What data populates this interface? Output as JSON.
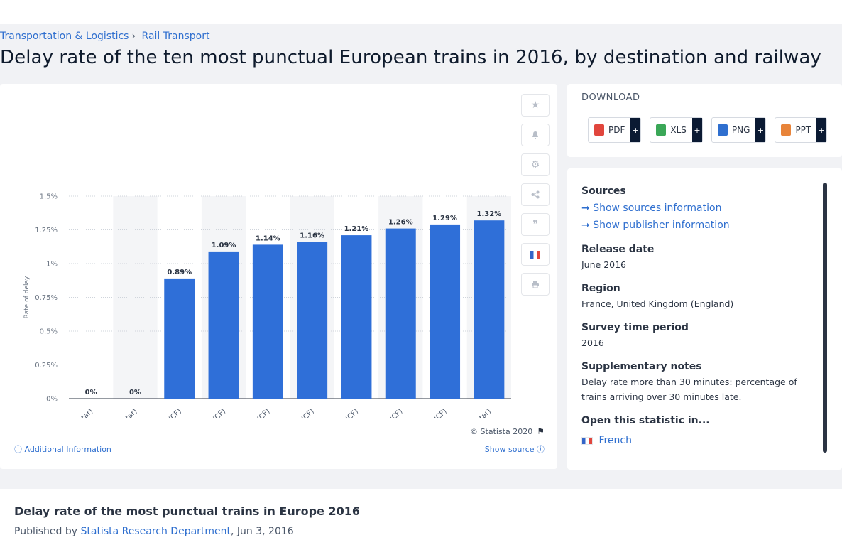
{
  "breadcrumb": {
    "item1": "Transportation & Logistics",
    "sep": "›",
    "item2": "Rail Transport"
  },
  "page_title": "Delay rate of the ten most punctual European trains in 2016, by destination and railway",
  "chart_data": {
    "type": "bar",
    "title": "",
    "xlabel": "",
    "ylabel": "Rate of delay",
    "ylim": [
      0,
      1.5
    ],
    "yticks": [
      "0%",
      "0.25%",
      "0.5%",
      "0.75%",
      "1%",
      "1.25%",
      "1.5%"
    ],
    "ytick_values": [
      0,
      0.25,
      0.5,
      0.75,
      1,
      1.25,
      1.5
    ],
    "categories": [
      "Lille Europe (Eurostar)",
      "Ashford International (Eurostar)",
      "Reims (SNCF)",
      "Limoges (SNCF)",
      "Brest (SNCF)",
      "Dijon (SNCF)",
      "Lille (SNCF)",
      "Anger Saint-Laud (SNCF)",
      "Laval (SNCF)",
      "Ebbsfleet (Eurostar)"
    ],
    "values": [
      0,
      0,
      0.89,
      1.09,
      1.14,
      1.16,
      1.21,
      1.26,
      1.29,
      1.32
    ],
    "data_labels": [
      "0%",
      "0%",
      "0.89%",
      "1.09%",
      "1.14%",
      "1.16%",
      "1.21%",
      "1.26%",
      "1.29%",
      "1.32%"
    ],
    "bar_color": "#2f6fd8",
    "grid": true
  },
  "chart_footer": {
    "copyright": "© Statista 2020",
    "additional": "Additional Information",
    "show_source": "Show source"
  },
  "toolbar_icons": [
    "star-icon",
    "bell-icon",
    "gear-icon",
    "share-icon",
    "quote-icon",
    "french-flag-icon",
    "print-icon"
  ],
  "download": {
    "title": "DOWNLOAD",
    "buttons": [
      {
        "label": "PDF",
        "color": "#e1463d"
      },
      {
        "label": "XLS",
        "color": "#3aa757"
      },
      {
        "label": "PNG",
        "color": "#2f6fcf"
      },
      {
        "label": "PPT",
        "color": "#e8843a"
      }
    ],
    "plus": "+"
  },
  "meta": {
    "sources_h": "Sources",
    "sources_link": "Show sources information",
    "publisher_link": "Show publisher information",
    "release_h": "Release date",
    "release": "June 2016",
    "region_h": "Region",
    "region": "France, United Kingdom (England)",
    "survey_h": "Survey time period",
    "survey": "2016",
    "notes_h": "Supplementary notes",
    "notes": "Delay rate more than 30 minutes: percentage of trains arriving over 30 minutes late.",
    "open_h": "Open this statistic in...",
    "open_link": "French"
  },
  "bottom": {
    "title": "Delay rate of the most punctual trains in Europe 2016",
    "published_by": "Published by",
    "author": "Statista Research Department",
    "date": ", Jun 3, 2016"
  }
}
